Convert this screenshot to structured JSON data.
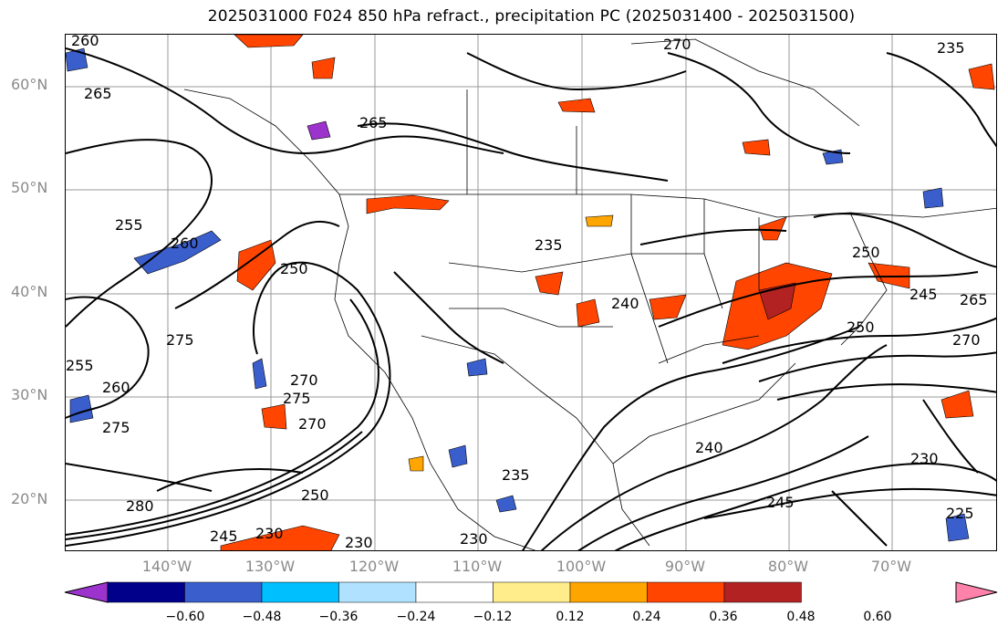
{
  "title": "2025031000 F024 850 hPa refract., precipitation PC (2025031400 - 2025031500)",
  "lat_labels": [
    "60°N",
    "50°N",
    "40°N",
    "30°N",
    "20°N"
  ],
  "lon_labels": [
    "140°W",
    "130°W",
    "120°W",
    "110°W",
    "100°W",
    "90°W",
    "80°W",
    "70°W"
  ],
  "colorbar": {
    "colors": [
      "#9b33cc",
      "#00008b",
      "#3a5fcd",
      "#00bfff",
      "#b0e2ff",
      "#ffffff",
      "#ffec8b",
      "#ffa500",
      "#ff4500",
      "#b22222",
      "#ff82ab"
    ],
    "tick_labels": [
      "−0.60",
      "−0.48",
      "−0.36",
      "−0.24",
      "−0.12",
      "0.12",
      "0.24",
      "0.36",
      "0.48",
      "0.60"
    ]
  },
  "contour_labels": [
    "260",
    "265",
    "270",
    "265",
    "255",
    "260",
    "250",
    "275",
    "255",
    "260",
    "275",
    "270",
    "275",
    "270",
    "280",
    "250",
    "245",
    "230",
    "230",
    "230",
    "235",
    "240",
    "240",
    "235",
    "250",
    "245",
    "265",
    "270",
    "250",
    "245",
    "230",
    "235",
    "225"
  ]
}
